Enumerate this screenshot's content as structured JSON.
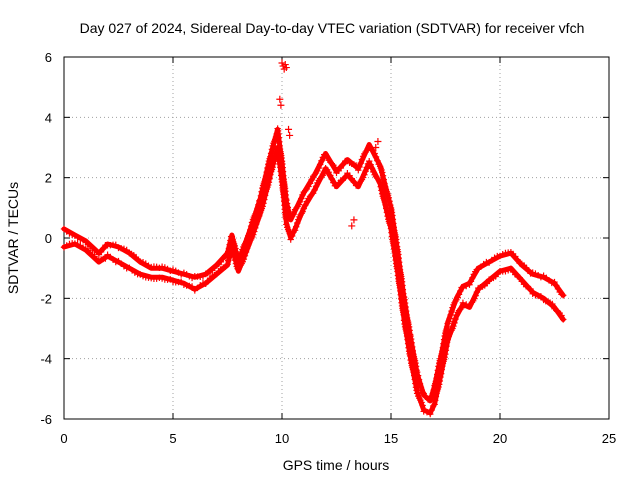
{
  "chart_data": {
    "type": "scatter",
    "title": "Day 027 of 2024, Sidereal Day-to-day VTEC variation (SDTVAR) for receiver vfch",
    "xlabel": "GPS time / hours",
    "ylabel": "SDTVAR / TECUs",
    "xlim": [
      0,
      25
    ],
    "ylim": [
      -6,
      6
    ],
    "xticks": [
      0,
      5,
      10,
      15,
      20,
      25
    ],
    "yticks": [
      -6,
      -4,
      -2,
      0,
      2,
      4,
      6
    ],
    "grid": true,
    "marker": "+",
    "color": "#ff0000",
    "series": [
      {
        "name": "band-1",
        "x": [
          0.0,
          0.5,
          1.0,
          1.3,
          1.6,
          2.0,
          2.5,
          3.0,
          3.5,
          4.0,
          4.5,
          5.0,
          5.5,
          6.0,
          6.5,
          7.0,
          7.5,
          7.7,
          8.0,
          8.5,
          9.0,
          9.3,
          9.5,
          9.8,
          10.0,
          10.2,
          10.4,
          10.6,
          11.0,
          11.5,
          12.0,
          12.5,
          13.0,
          13.5,
          14.0,
          14.5,
          15.0,
          15.3,
          15.6,
          15.9,
          16.2,
          16.5,
          16.8,
          17.0,
          17.3,
          17.6,
          18.0,
          18.3,
          18.6,
          19.0,
          19.5,
          20.0,
          20.5,
          21.0,
          21.5,
          22.0,
          22.5,
          22.9
        ],
        "y": [
          0.3,
          0.1,
          -0.1,
          -0.3,
          -0.5,
          -0.2,
          -0.3,
          -0.5,
          -0.8,
          -1.0,
          -1.0,
          -1.1,
          -1.2,
          -1.3,
          -1.2,
          -0.9,
          -0.5,
          0.1,
          -0.8,
          0.2,
          1.3,
          2.2,
          2.8,
          3.6,
          2.5,
          1.2,
          0.6,
          0.9,
          1.5,
          2.1,
          2.8,
          2.2,
          2.6,
          2.3,
          3.1,
          2.4,
          1.0,
          -0.4,
          -2.0,
          -3.3,
          -4.5,
          -5.2,
          -5.4,
          -4.9,
          -3.9,
          -2.8,
          -2.0,
          -1.6,
          -1.5,
          -1.0,
          -0.8,
          -0.6,
          -0.5,
          -0.9,
          -1.2,
          -1.3,
          -1.5,
          -1.9
        ]
      },
      {
        "name": "band-2",
        "x": [
          0.0,
          0.5,
          1.0,
          1.3,
          1.6,
          2.0,
          2.5,
          3.0,
          3.5,
          4.0,
          4.5,
          5.0,
          5.5,
          6.0,
          6.5,
          7.0,
          7.5,
          7.7,
          8.0,
          8.5,
          9.0,
          9.3,
          9.5,
          9.8,
          10.0,
          10.2,
          10.4,
          10.6,
          11.0,
          11.5,
          12.0,
          12.5,
          13.0,
          13.5,
          14.0,
          14.5,
          15.0,
          15.3,
          15.6,
          15.9,
          16.2,
          16.5,
          16.8,
          17.0,
          17.3,
          17.6,
          18.0,
          18.3,
          18.6,
          19.0,
          19.5,
          20.0,
          20.5,
          21.0,
          21.5,
          22.0,
          22.5,
          22.9
        ],
        "y": [
          -0.3,
          -0.2,
          -0.4,
          -0.6,
          -0.8,
          -0.6,
          -0.8,
          -1.0,
          -1.2,
          -1.3,
          -1.3,
          -1.4,
          -1.5,
          -1.7,
          -1.5,
          -1.2,
          -0.9,
          -0.3,
          -1.1,
          -0.2,
          0.8,
          1.6,
          2.2,
          3.0,
          1.9,
          0.5,
          0.0,
          0.3,
          1.0,
          1.6,
          2.3,
          1.7,
          2.1,
          1.7,
          2.5,
          1.8,
          0.3,
          -1.1,
          -2.7,
          -4.0,
          -5.1,
          -5.7,
          -5.8,
          -5.5,
          -4.5,
          -3.4,
          -2.6,
          -2.2,
          -2.3,
          -1.7,
          -1.4,
          -1.1,
          -1.0,
          -1.4,
          -1.8,
          -2.0,
          -2.3,
          -2.7
        ]
      },
      {
        "name": "outliers",
        "x": [
          10.0,
          10.05,
          10.1,
          10.15,
          10.2,
          9.9,
          9.95,
          10.3,
          10.35,
          13.2,
          13.3,
          14.3,
          14.4
        ],
        "y": [
          5.8,
          5.7,
          5.6,
          5.75,
          5.65,
          4.6,
          4.4,
          3.6,
          3.4,
          0.4,
          0.6,
          3.0,
          3.2
        ]
      }
    ]
  }
}
